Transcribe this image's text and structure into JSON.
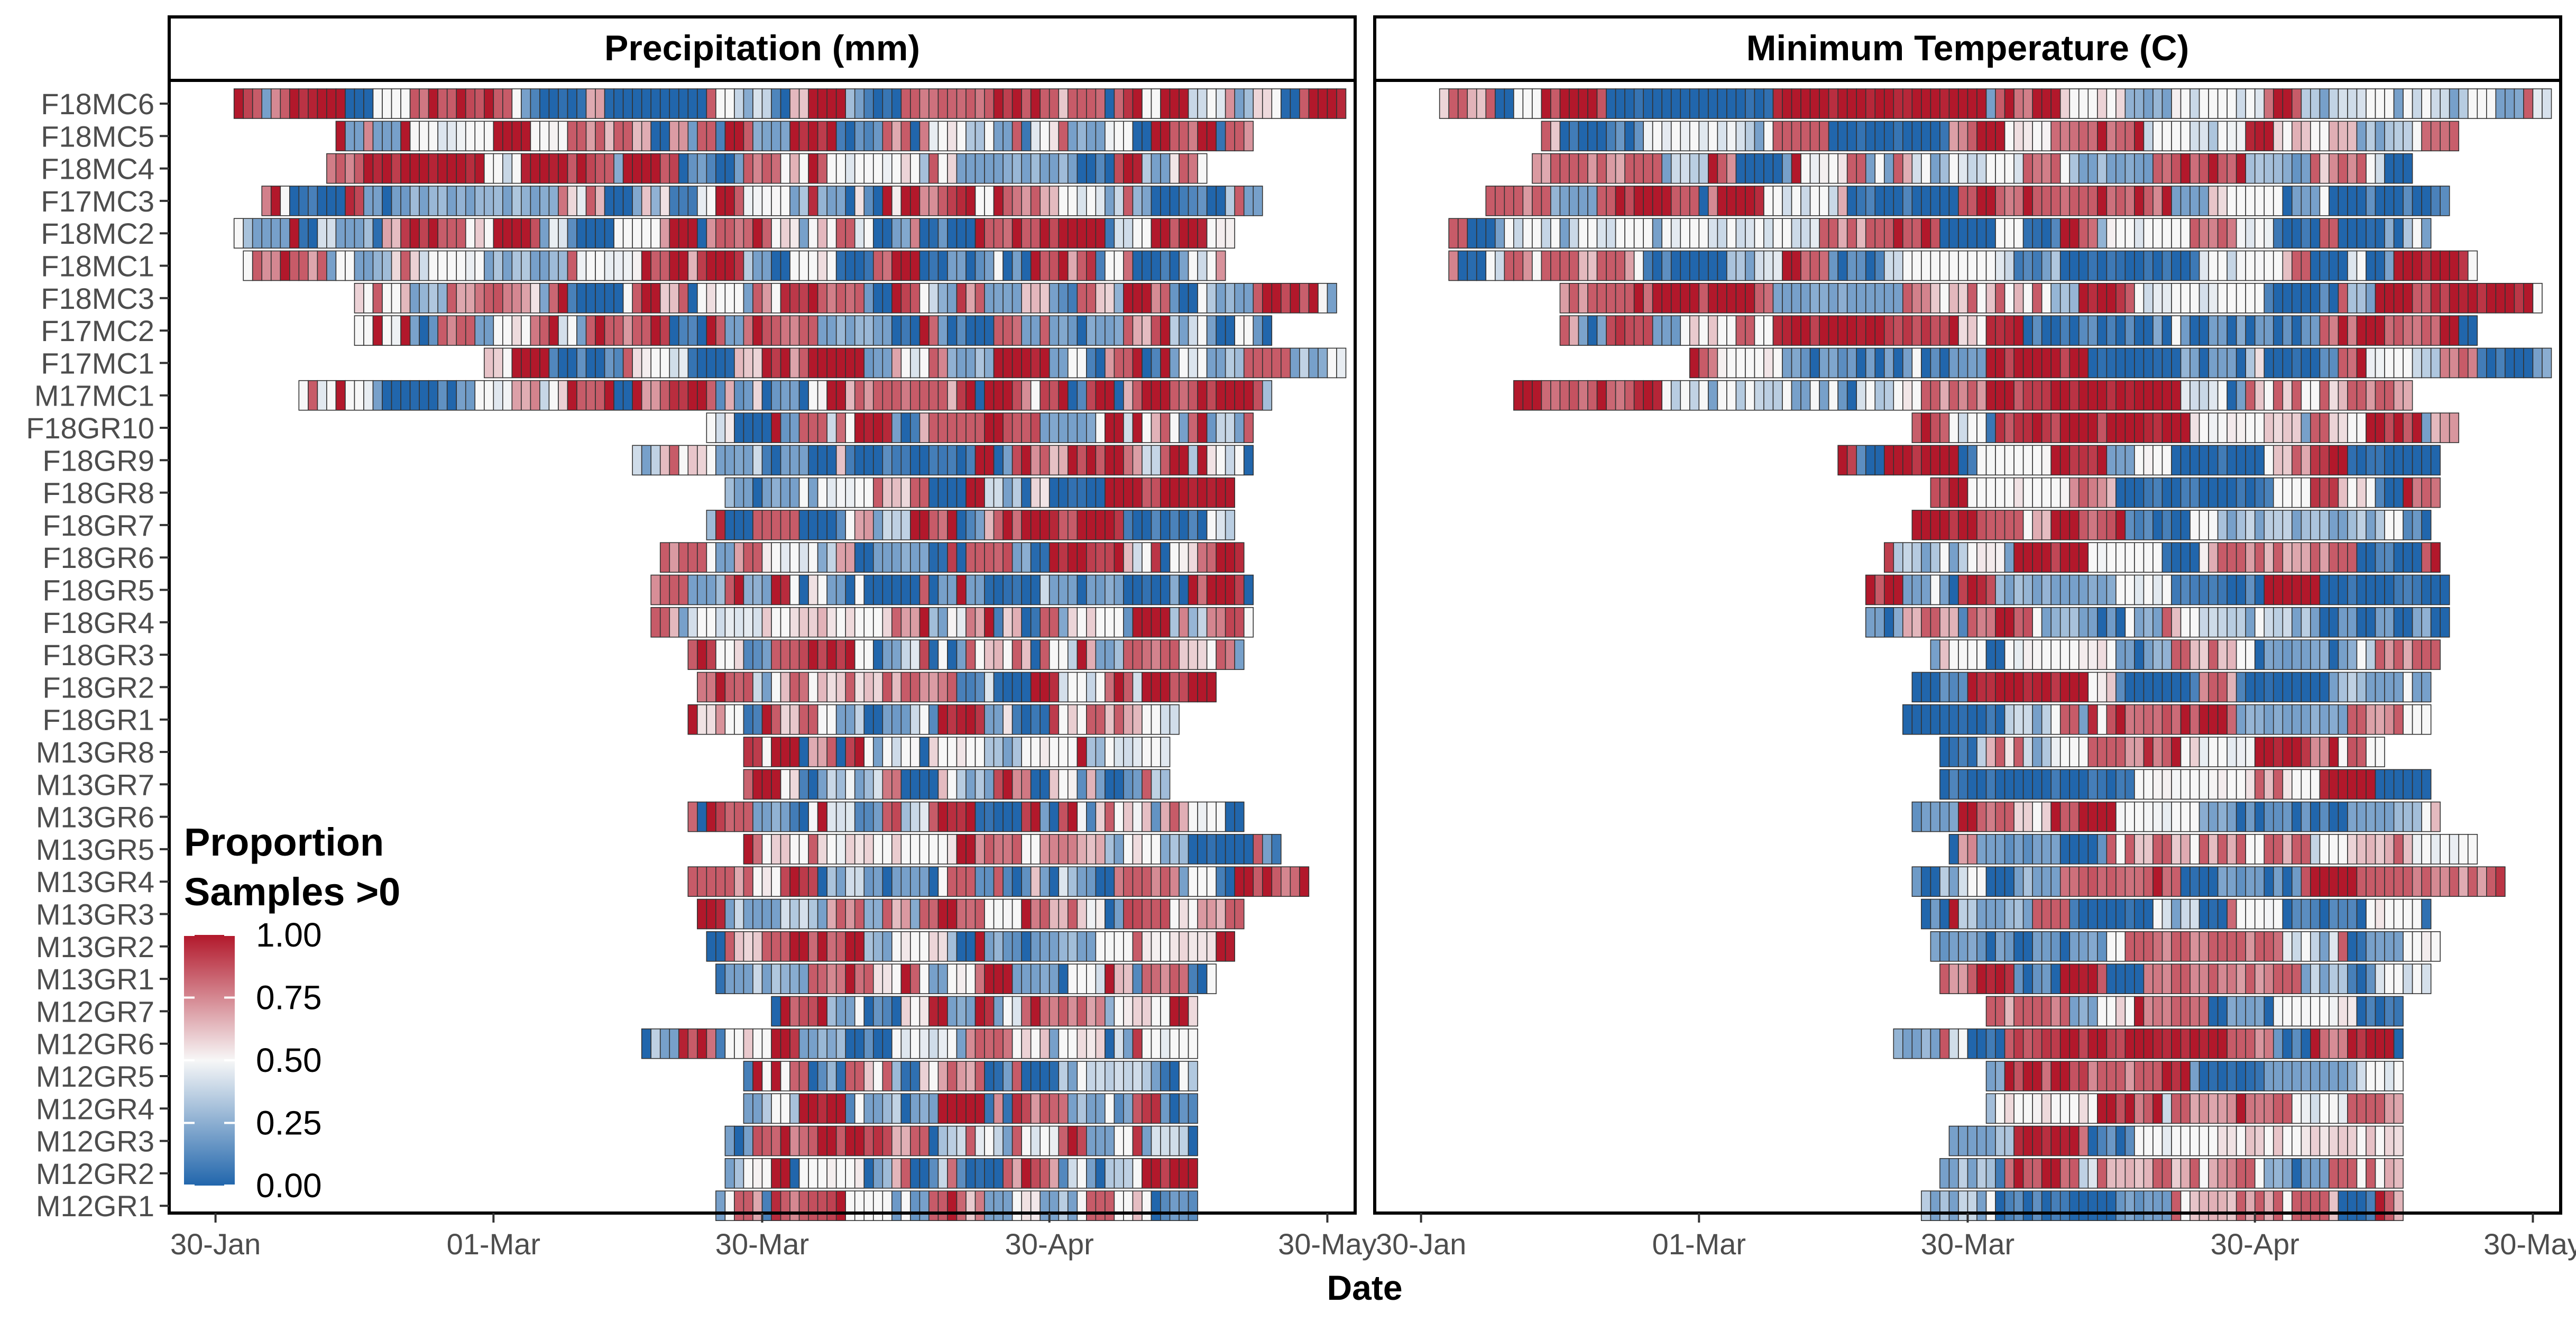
{
  "chart_data": {
    "type": "heatmap",
    "xlabel": "Date",
    "x_tick_labels": [
      "30-Jan",
      "01-Mar",
      "30-Mar",
      "30-Apr",
      "30-May"
    ],
    "x_ticks": [
      "2018-01-30",
      "2018-03-01",
      "2018-03-30",
      "2018-04-30",
      "2018-05-30"
    ],
    "xlim": [
      "2018-01-25",
      "2018-06-02"
    ],
    "y_categories": [
      "F18MC6",
      "F18MC5",
      "F18MC4",
      "F17MC3",
      "F18MC2",
      "F18MC1",
      "F18MC3",
      "F17MC2",
      "F17MC1",
      "M17MC1",
      "F18GR10",
      "F18GR9",
      "F18GR8",
      "F18GR7",
      "F18GR6",
      "F18GR5",
      "F18GR4",
      "F18GR3",
      "F18GR2",
      "F18GR1",
      "M13GR8",
      "M13GR7",
      "M13GR6",
      "M13GR5",
      "M13GR4",
      "M13GR3",
      "M13GR2",
      "M13GR1",
      "M12GR7",
      "M12GR6",
      "M12GR5",
      "M12GR4",
      "M12GR3",
      "M12GR2",
      "M12GR1"
    ],
    "legend": {
      "title_line1": "Proportion",
      "title_line2": "Samples >0",
      "labels": [
        "1.00",
        "0.75",
        "0.50",
        "0.25",
        "0.00"
      ],
      "placement": "bottom-left",
      "colors": {
        "low": "#2166ac",
        "mid": "#f7f7f7",
        "high": "#b2182b"
      }
    },
    "panels": [
      {
        "title": "Precipitation (mm)",
        "rows": [
          {
            "name": "F18MC6",
            "start": "2018-02-01",
            "end": "2018-06-01",
            "seed": 101
          },
          {
            "name": "F18MC5",
            "start": "2018-02-12",
            "end": "2018-05-22",
            "seed": 102
          },
          {
            "name": "F18MC4",
            "start": "2018-02-11",
            "end": "2018-05-17",
            "seed": 103
          },
          {
            "name": "F17MC3",
            "start": "2018-02-04",
            "end": "2018-05-23",
            "seed": 104
          },
          {
            "name": "F18MC2",
            "start": "2018-02-01",
            "end": "2018-05-20",
            "seed": 105
          },
          {
            "name": "F18MC1",
            "start": "2018-02-02",
            "end": "2018-05-19",
            "seed": 106
          },
          {
            "name": "F18MC3",
            "start": "2018-02-14",
            "end": "2018-05-31",
            "seed": 107
          },
          {
            "name": "F17MC2",
            "start": "2018-02-14",
            "end": "2018-05-24",
            "seed": 108
          },
          {
            "name": "F17MC1",
            "start": "2018-02-28",
            "end": "2018-06-01",
            "seed": 109
          },
          {
            "name": "M17MC1",
            "start": "2018-02-08",
            "end": "2018-05-24",
            "seed": 110
          },
          {
            "name": "F18GR10",
            "start": "2018-03-24",
            "end": "2018-05-22",
            "seed": 111
          },
          {
            "name": "F18GR9",
            "start": "2018-03-16",
            "end": "2018-05-22",
            "seed": 112
          },
          {
            "name": "F18GR8",
            "start": "2018-03-26",
            "end": "2018-05-20",
            "seed": 113
          },
          {
            "name": "F18GR7",
            "start": "2018-03-24",
            "end": "2018-05-20",
            "seed": 114
          },
          {
            "name": "F18GR6",
            "start": "2018-03-19",
            "end": "2018-05-21",
            "seed": 115
          },
          {
            "name": "F18GR5",
            "start": "2018-03-18",
            "end": "2018-05-22",
            "seed": 116
          },
          {
            "name": "F18GR4",
            "start": "2018-03-18",
            "end": "2018-05-22",
            "seed": 117
          },
          {
            "name": "F18GR3",
            "start": "2018-03-22",
            "end": "2018-05-21",
            "seed": 118
          },
          {
            "name": "F18GR2",
            "start": "2018-03-23",
            "end": "2018-05-18",
            "seed": 119
          },
          {
            "name": "F18GR1",
            "start": "2018-03-22",
            "end": "2018-05-14",
            "seed": 120
          },
          {
            "name": "M13GR8",
            "start": "2018-03-28",
            "end": "2018-05-13",
            "seed": 121
          },
          {
            "name": "M13GR7",
            "start": "2018-03-28",
            "end": "2018-05-13",
            "seed": 122
          },
          {
            "name": "M13GR6",
            "start": "2018-03-22",
            "end": "2018-05-21",
            "seed": 123
          },
          {
            "name": "M13GR5",
            "start": "2018-03-28",
            "end": "2018-05-25",
            "seed": 124
          },
          {
            "name": "M13GR4",
            "start": "2018-03-22",
            "end": "2018-05-28",
            "seed": 125
          },
          {
            "name": "M13GR3",
            "start": "2018-03-23",
            "end": "2018-05-21",
            "seed": 126
          },
          {
            "name": "M13GR2",
            "start": "2018-03-24",
            "end": "2018-05-20",
            "seed": 127
          },
          {
            "name": "M13GR1",
            "start": "2018-03-25",
            "end": "2018-05-18",
            "seed": 128
          },
          {
            "name": "M12GR7",
            "start": "2018-03-31",
            "end": "2018-05-16",
            "seed": 129
          },
          {
            "name": "M12GR6",
            "start": "2018-03-17",
            "end": "2018-05-16",
            "seed": 130
          },
          {
            "name": "M12GR5",
            "start": "2018-03-28",
            "end": "2018-05-16",
            "seed": 131
          },
          {
            "name": "M12GR4",
            "start": "2018-03-28",
            "end": "2018-05-16",
            "seed": 132
          },
          {
            "name": "M12GR3",
            "start": "2018-03-26",
            "end": "2018-05-16",
            "seed": 133
          },
          {
            "name": "M12GR2",
            "start": "2018-03-26",
            "end": "2018-05-16",
            "seed": 134
          },
          {
            "name": "M12GR1",
            "start": "2018-03-25",
            "end": "2018-05-16",
            "seed": 135
          }
        ]
      },
      {
        "title": "Minimum Temperature (C)",
        "rows": [
          {
            "name": "F18MC6",
            "start": "2018-02-01",
            "end": "2018-06-01",
            "seed": 201
          },
          {
            "name": "F18MC5",
            "start": "2018-02-12",
            "end": "2018-05-22",
            "seed": 202
          },
          {
            "name": "F18MC4",
            "start": "2018-02-11",
            "end": "2018-05-17",
            "seed": 203
          },
          {
            "name": "F17MC3",
            "start": "2018-02-06",
            "end": "2018-05-21",
            "seed": 204
          },
          {
            "name": "F18MC2",
            "start": "2018-02-02",
            "end": "2018-05-19",
            "seed": 205
          },
          {
            "name": "F18MC1",
            "start": "2018-02-02",
            "end": "2018-05-24",
            "seed": 206
          },
          {
            "name": "F18MC3",
            "start": "2018-02-14",
            "end": "2018-05-31",
            "seed": 207
          },
          {
            "name": "F17MC2",
            "start": "2018-02-14",
            "end": "2018-05-24",
            "seed": 208
          },
          {
            "name": "F17MC1",
            "start": "2018-02-28",
            "end": "2018-06-01",
            "seed": 209
          },
          {
            "name": "M17MC1",
            "start": "2018-02-09",
            "end": "2018-05-17",
            "seed": 210
          },
          {
            "name": "F18GR10",
            "start": "2018-03-24",
            "end": "2018-05-22",
            "seed": 211
          },
          {
            "name": "F18GR9",
            "start": "2018-03-16",
            "end": "2018-05-20",
            "seed": 212
          },
          {
            "name": "F18GR8",
            "start": "2018-03-26",
            "end": "2018-05-20",
            "seed": 213
          },
          {
            "name": "F18GR7",
            "start": "2018-03-24",
            "end": "2018-05-19",
            "seed": 214
          },
          {
            "name": "F18GR6",
            "start": "2018-03-21",
            "end": "2018-05-20",
            "seed": 215
          },
          {
            "name": "F18GR5",
            "start": "2018-03-19",
            "end": "2018-05-21",
            "seed": 216
          },
          {
            "name": "F18GR4",
            "start": "2018-03-19",
            "end": "2018-05-21",
            "seed": 217
          },
          {
            "name": "F18GR3",
            "start": "2018-03-26",
            "end": "2018-05-20",
            "seed": 218
          },
          {
            "name": "F18GR2",
            "start": "2018-03-24",
            "end": "2018-05-19",
            "seed": 219
          },
          {
            "name": "F18GR1",
            "start": "2018-03-23",
            "end": "2018-05-19",
            "seed": 220
          },
          {
            "name": "M13GR8",
            "start": "2018-03-27",
            "end": "2018-05-14",
            "seed": 221
          },
          {
            "name": "M13GR7",
            "start": "2018-03-27",
            "end": "2018-05-19",
            "seed": 222
          },
          {
            "name": "M13GR6",
            "start": "2018-03-24",
            "end": "2018-05-20",
            "seed": 223
          },
          {
            "name": "M13GR5",
            "start": "2018-03-28",
            "end": "2018-05-24",
            "seed": 224
          },
          {
            "name": "M13GR4",
            "start": "2018-03-24",
            "end": "2018-05-27",
            "seed": 225
          },
          {
            "name": "M13GR3",
            "start": "2018-03-25",
            "end": "2018-05-19",
            "seed": 226
          },
          {
            "name": "M13GR2",
            "start": "2018-03-26",
            "end": "2018-05-20",
            "seed": 227
          },
          {
            "name": "M13GR1",
            "start": "2018-03-27",
            "end": "2018-05-19",
            "seed": 228
          },
          {
            "name": "M12GR7",
            "start": "2018-04-01",
            "end": "2018-05-16",
            "seed": 229
          },
          {
            "name": "M12GR6",
            "start": "2018-03-22",
            "end": "2018-05-16",
            "seed": 230
          },
          {
            "name": "M12GR5",
            "start": "2018-04-01",
            "end": "2018-05-16",
            "seed": 231
          },
          {
            "name": "M12GR4",
            "start": "2018-04-01",
            "end": "2018-05-16",
            "seed": 232
          },
          {
            "name": "M12GR3",
            "start": "2018-03-28",
            "end": "2018-05-16",
            "seed": 233
          },
          {
            "name": "M12GR2",
            "start": "2018-03-27",
            "end": "2018-05-16",
            "seed": 234
          },
          {
            "name": "M12GR1",
            "start": "2018-03-25",
            "end": "2018-05-16",
            "seed": 235
          }
        ]
      }
    ]
  }
}
